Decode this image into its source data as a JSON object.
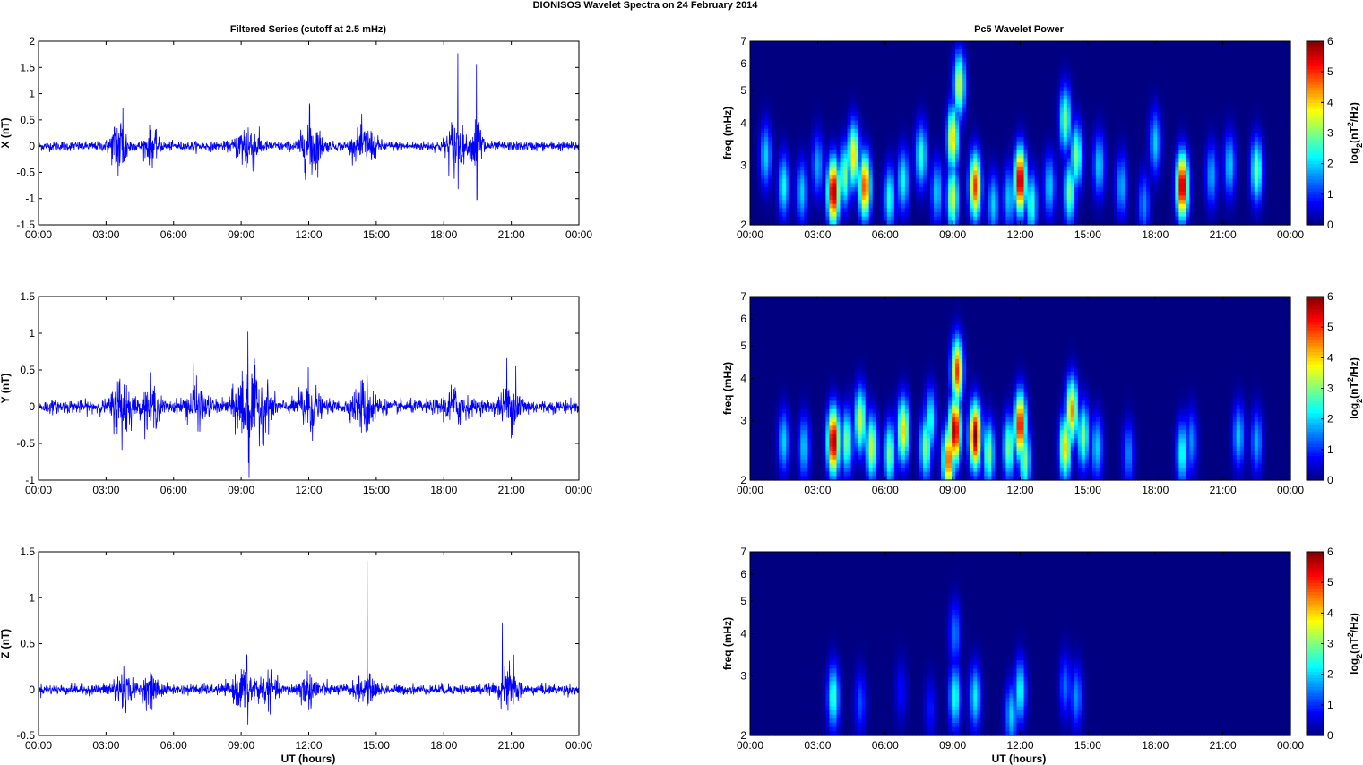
{
  "figure": {
    "suptitle": "DIONISOS Wavelet Spectra on 24 February  2014",
    "left_title": "Filtered Series (cutoff at 2.5 mHz)",
    "right_title": "Pc5 Wavelet Power",
    "xlabel": "UT (hours)"
  },
  "colors": {
    "trace": "#0000ff",
    "axis": "#000000",
    "colormap": "jet"
  },
  "chart_data": [
    {
      "type": "line",
      "ylabel": "X (nT)",
      "x_ticks": [
        "00:00",
        "03:00",
        "06:00",
        "09:00",
        "12:00",
        "15:00",
        "18:00",
        "21:00",
        "00:00"
      ],
      "x_range_hours": [
        0,
        24
      ],
      "ylim": [
        -1.5,
        2
      ],
      "y_ticks": [
        "-1.5",
        "-1",
        "-0.5",
        "0",
        "0.5",
        "1",
        "1.5",
        "2"
      ],
      "y_tick_values": [
        -1.5,
        -1,
        -0.5,
        0,
        0.5,
        1,
        1.5,
        2
      ],
      "noise_base_nT": 0.08,
      "bursts": [
        {
          "t": 3.6,
          "w": 0.35,
          "amp": 0.55
        },
        {
          "t": 5.0,
          "w": 0.3,
          "amp": 0.25
        },
        {
          "t": 9.3,
          "w": 0.45,
          "amp": 0.45
        },
        {
          "t": 12.1,
          "w": 0.4,
          "amp": 0.55
        },
        {
          "t": 14.5,
          "w": 0.5,
          "amp": 0.3
        },
        {
          "t": 18.5,
          "w": 0.4,
          "amp": 0.45
        },
        {
          "t": 19.5,
          "w": 0.25,
          "amp": 0.5
        }
      ],
      "spikes": [
        {
          "t": 18.62,
          "v": 1.77
        },
        {
          "t": 18.64,
          "v": -0.82
        },
        {
          "t": 19.45,
          "v": 1.55
        },
        {
          "t": 19.47,
          "v": -1.02
        },
        {
          "t": 12.05,
          "v": 0.77
        },
        {
          "t": 3.75,
          "v": 0.72
        }
      ]
    },
    {
      "type": "heatmap",
      "ylabel": "freq (mHz)",
      "colorbar_label": "log2(nT2/Hz)",
      "x_ticks": [
        "00:00",
        "03:00",
        "06:00",
        "09:00",
        "12:00",
        "15:00",
        "18:00",
        "21:00",
        "00:00"
      ],
      "y_scale": "log",
      "ylim": [
        2,
        7
      ],
      "y_ticks": [
        "2",
        "3",
        "4",
        "5",
        "6",
        "7"
      ],
      "y_tick_values": [
        2,
        3,
        4,
        5,
        6,
        7
      ],
      "clim": [
        0,
        6
      ],
      "c_ticks": [
        "0",
        "1",
        "2",
        "3",
        "4",
        "5",
        "6"
      ],
      "blobs": [
        {
          "t": 0.7,
          "f": 3.2,
          "p": 2.0
        },
        {
          "t": 1.5,
          "f": 2.6,
          "p": 2.3
        },
        {
          "t": 2.3,
          "f": 2.5,
          "p": 2.0
        },
        {
          "t": 3.0,
          "f": 3.0,
          "p": 1.8
        },
        {
          "t": 3.7,
          "f": 2.5,
          "p": 6.0
        },
        {
          "t": 4.2,
          "f": 2.8,
          "p": 3.0
        },
        {
          "t": 4.6,
          "f": 3.2,
          "p": 4.0
        },
        {
          "t": 5.1,
          "f": 2.6,
          "p": 5.0
        },
        {
          "t": 6.2,
          "f": 2.4,
          "p": 2.5
        },
        {
          "t": 6.8,
          "f": 2.7,
          "p": 2.3
        },
        {
          "t": 7.6,
          "f": 3.2,
          "p": 2.5
        },
        {
          "t": 8.3,
          "f": 2.5,
          "p": 2.0
        },
        {
          "t": 9.0,
          "f": 3.6,
          "p": 4.0
        },
        {
          "t": 9.0,
          "f": 2.4,
          "p": 3.5
        },
        {
          "t": 9.3,
          "f": 5.2,
          "p": 3.6
        },
        {
          "t": 10.0,
          "f": 2.6,
          "p": 5.0
        },
        {
          "t": 10.8,
          "f": 2.3,
          "p": 2.0
        },
        {
          "t": 11.5,
          "f": 2.4,
          "p": 2.0
        },
        {
          "t": 12.0,
          "f": 2.7,
          "p": 6.0
        },
        {
          "t": 12.5,
          "f": 2.3,
          "p": 2.6
        },
        {
          "t": 13.3,
          "f": 2.6,
          "p": 2.0
        },
        {
          "t": 14.0,
          "f": 4.1,
          "p": 3.0
        },
        {
          "t": 14.2,
          "f": 2.5,
          "p": 3.0
        },
        {
          "t": 14.5,
          "f": 3.2,
          "p": 3.0
        },
        {
          "t": 15.5,
          "f": 3.0,
          "p": 2.0
        },
        {
          "t": 16.5,
          "f": 2.6,
          "p": 1.8
        },
        {
          "t": 17.5,
          "f": 2.3,
          "p": 1.6
        },
        {
          "t": 18.0,
          "f": 3.5,
          "p": 2.0
        },
        {
          "t": 19.2,
          "f": 2.6,
          "p": 6.0
        },
        {
          "t": 20.5,
          "f": 2.8,
          "p": 1.8
        },
        {
          "t": 21.3,
          "f": 3.0,
          "p": 2.0
        },
        {
          "t": 22.5,
          "f": 2.9,
          "p": 3.0
        }
      ]
    },
    {
      "type": "line",
      "ylabel": "Y (nT)",
      "x_ticks": [
        "00:00",
        "03:00",
        "06:00",
        "09:00",
        "12:00",
        "15:00",
        "18:00",
        "21:00",
        "00:00"
      ],
      "x_range_hours": [
        0,
        24
      ],
      "ylim": [
        -1,
        1.5
      ],
      "y_ticks": [
        "-1",
        "-0.5",
        "0",
        "0.5",
        "1",
        "1.5"
      ],
      "y_tick_values": [
        -1,
        -0.5,
        0,
        0.5,
        1,
        1.5
      ],
      "noise_base_nT": 0.08,
      "bursts": [
        {
          "t": 3.7,
          "w": 0.4,
          "amp": 0.4
        },
        {
          "t": 5.0,
          "w": 0.35,
          "amp": 0.25
        },
        {
          "t": 7.0,
          "w": 0.5,
          "amp": 0.2
        },
        {
          "t": 9.2,
          "w": 0.5,
          "amp": 0.5
        },
        {
          "t": 10.0,
          "w": 0.4,
          "amp": 0.25
        },
        {
          "t": 12.0,
          "w": 0.4,
          "amp": 0.35
        },
        {
          "t": 14.5,
          "w": 0.5,
          "amp": 0.3
        },
        {
          "t": 18.5,
          "w": 0.5,
          "amp": 0.2
        },
        {
          "t": 21.0,
          "w": 0.5,
          "amp": 0.22
        }
      ],
      "spikes": [
        {
          "t": 9.3,
          "v": 1.02
        },
        {
          "t": 9.35,
          "v": -0.97
        },
        {
          "t": 6.9,
          "v": 0.6
        },
        {
          "t": 20.8,
          "v": 0.66
        },
        {
          "t": 21.2,
          "v": 0.55
        }
      ]
    },
    {
      "type": "heatmap",
      "ylabel": "freq (mHz)",
      "colorbar_label": "log2(nT2/Hz)",
      "x_ticks": [
        "00:00",
        "03:00",
        "06:00",
        "09:00",
        "12:00",
        "15:00",
        "18:00",
        "21:00",
        "00:00"
      ],
      "y_scale": "log",
      "ylim": [
        2,
        7
      ],
      "y_ticks": [
        "2",
        "3",
        "4",
        "5",
        "6",
        "7"
      ],
      "y_tick_values": [
        2,
        3,
        4,
        5,
        6,
        7
      ],
      "clim": [
        0,
        6
      ],
      "c_ticks": [
        "0",
        "1",
        "2",
        "3",
        "4",
        "5",
        "6"
      ],
      "blobs": [
        {
          "t": 1.5,
          "f": 2.6,
          "p": 2.0
        },
        {
          "t": 2.4,
          "f": 2.5,
          "p": 2.0
        },
        {
          "t": 3.7,
          "f": 2.6,
          "p": 6.0
        },
        {
          "t": 4.3,
          "f": 2.6,
          "p": 3.0
        },
        {
          "t": 4.9,
          "f": 3.0,
          "p": 3.5
        },
        {
          "t": 5.4,
          "f": 2.5,
          "p": 3.5
        },
        {
          "t": 6.2,
          "f": 2.4,
          "p": 3.0
        },
        {
          "t": 6.8,
          "f": 2.8,
          "p": 4.0
        },
        {
          "t": 7.8,
          "f": 2.5,
          "p": 3.0
        },
        {
          "t": 8.0,
          "f": 3.0,
          "p": 2.5
        },
        {
          "t": 8.8,
          "f": 2.3,
          "p": 5.0
        },
        {
          "t": 9.1,
          "f": 2.8,
          "p": 6.0
        },
        {
          "t": 9.2,
          "f": 4.2,
          "p": 5.0
        },
        {
          "t": 10.0,
          "f": 2.7,
          "p": 6.0
        },
        {
          "t": 10.6,
          "f": 2.4,
          "p": 3.0
        },
        {
          "t": 11.5,
          "f": 2.5,
          "p": 3.0
        },
        {
          "t": 12.0,
          "f": 2.9,
          "p": 5.5
        },
        {
          "t": 12.2,
          "f": 2.3,
          "p": 3.0
        },
        {
          "t": 14.0,
          "f": 2.5,
          "p": 4.0
        },
        {
          "t": 14.3,
          "f": 3.2,
          "p": 4.5
        },
        {
          "t": 14.8,
          "f": 2.7,
          "p": 3.0
        },
        {
          "t": 15.4,
          "f": 2.5,
          "p": 2.0
        },
        {
          "t": 16.8,
          "f": 2.4,
          "p": 1.6
        },
        {
          "t": 19.2,
          "f": 2.4,
          "p": 2.5
        },
        {
          "t": 19.6,
          "f": 2.6,
          "p": 1.6
        },
        {
          "t": 21.7,
          "f": 2.7,
          "p": 2.0
        },
        {
          "t": 22.5,
          "f": 2.6,
          "p": 1.8
        }
      ]
    },
    {
      "type": "line",
      "ylabel": "Z (nT)",
      "x_ticks": [
        "00:00",
        "03:00",
        "06:00",
        "09:00",
        "12:00",
        "15:00",
        "18:00",
        "21:00",
        "00:00"
      ],
      "x_range_hours": [
        0,
        24
      ],
      "ylim": [
        -0.5,
        1.5
      ],
      "y_ticks": [
        "-0.5",
        "0",
        "0.5",
        "1",
        "1.5"
      ],
      "y_tick_values": [
        -0.5,
        0,
        0.5,
        1,
        1.5
      ],
      "noise_base_nT": 0.05,
      "bursts": [
        {
          "t": 3.7,
          "w": 0.4,
          "amp": 0.18
        },
        {
          "t": 5.0,
          "w": 0.4,
          "amp": 0.12
        },
        {
          "t": 9.2,
          "w": 0.5,
          "amp": 0.2
        },
        {
          "t": 10.2,
          "w": 0.4,
          "amp": 0.12
        },
        {
          "t": 12.0,
          "w": 0.5,
          "amp": 0.13
        },
        {
          "t": 14.5,
          "w": 0.5,
          "amp": 0.1
        },
        {
          "t": 20.9,
          "w": 0.4,
          "amp": 0.18
        }
      ],
      "spikes": [
        {
          "t": 14.6,
          "v": 1.4
        },
        {
          "t": 20.6,
          "v": 0.73
        },
        {
          "t": 9.3,
          "v": -0.38
        },
        {
          "t": 9.25,
          "v": 0.36
        },
        {
          "t": 21.1,
          "v": 0.38
        }
      ]
    },
    {
      "type": "heatmap",
      "ylabel": "freq (mHz)",
      "colorbar_label": "log2(nT2/Hz)",
      "x_ticks": [
        "00:00",
        "03:00",
        "06:00",
        "09:00",
        "12:00",
        "15:00",
        "18:00",
        "21:00",
        "00:00"
      ],
      "y_scale": "log",
      "ylim": [
        2,
        7
      ],
      "y_ticks": [
        "2",
        "3",
        "4",
        "5",
        "6",
        "7"
      ],
      "y_tick_values": [
        2,
        3,
        4,
        5,
        6,
        7
      ],
      "clim": [
        0,
        6
      ],
      "c_ticks": [
        "0",
        "1",
        "2",
        "3",
        "4",
        "5",
        "6"
      ],
      "blobs": [
        {
          "t": 3.7,
          "f": 2.6,
          "p": 2.6
        },
        {
          "t": 4.9,
          "f": 2.5,
          "p": 1.2
        },
        {
          "t": 6.7,
          "f": 2.7,
          "p": 0.8
        },
        {
          "t": 8.0,
          "f": 2.4,
          "p": 0.9
        },
        {
          "t": 9.1,
          "f": 2.6,
          "p": 2.5
        },
        {
          "t": 9.1,
          "f": 4.0,
          "p": 1.5
        },
        {
          "t": 10.0,
          "f": 2.6,
          "p": 2.2
        },
        {
          "t": 11.6,
          "f": 2.3,
          "p": 2.0
        },
        {
          "t": 12.0,
          "f": 2.7,
          "p": 2.4
        },
        {
          "t": 14.0,
          "f": 2.8,
          "p": 1.4
        },
        {
          "t": 14.5,
          "f": 2.6,
          "p": 1.6
        }
      ]
    }
  ]
}
